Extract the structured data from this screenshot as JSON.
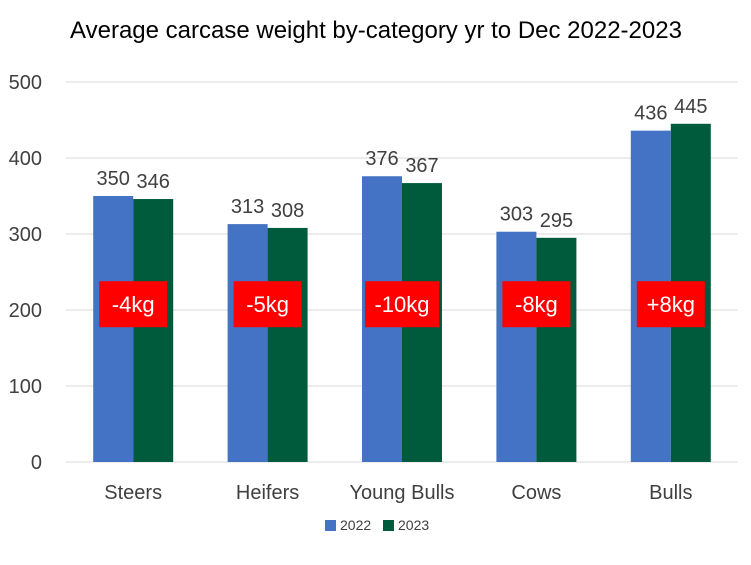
{
  "colors": {
    "series_2022": "#4472C4",
    "series_2023": "#005A3C",
    "annotation_bg": "#FF0000",
    "annotation_text": "#FFFFFF",
    "grid": "#D9D9D9",
    "text": "#404040"
  },
  "chart_data": {
    "type": "bar",
    "title": "Average carcase weight by-category  yr to Dec 2022-2023",
    "xlabel": "",
    "ylabel": "",
    "ylim": [
      0,
      500
    ],
    "yticks": [
      0,
      100,
      200,
      300,
      400,
      500
    ],
    "grid": true,
    "legend": "bottom-center",
    "categories": [
      "Steers",
      "Heifers",
      "Young Bulls",
      "Cows",
      "Bulls"
    ],
    "series": [
      {
        "name": "2022",
        "values": [
          350,
          313,
          376,
          303,
          436
        ]
      },
      {
        "name": "2023",
        "values": [
          346,
          308,
          367,
          295,
          445
        ]
      }
    ],
    "annotations": [
      "-4kg",
      "-5kg",
      "-10kg",
      "-8kg",
      "+8kg"
    ],
    "annotation_y": 180
  }
}
